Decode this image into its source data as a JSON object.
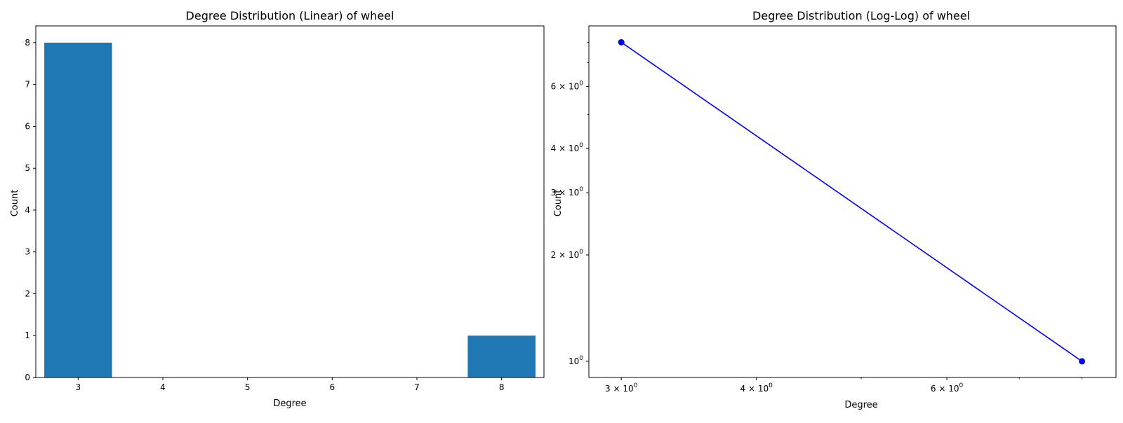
{
  "chart_data": [
    {
      "type": "bar",
      "title": "Degree Distribution (Linear) of wheel",
      "xlabel": "Degree",
      "ylabel": "Count",
      "categories": [
        3,
        8
      ],
      "values": [
        8,
        1
      ],
      "xticks": [
        "3",
        "4",
        "5",
        "6",
        "7",
        "8"
      ],
      "yticks": [
        "0",
        "1",
        "2",
        "3",
        "4",
        "5",
        "6",
        "7",
        "8"
      ],
      "xlim": [
        2.5,
        8.5
      ],
      "ylim": [
        0,
        8.4
      ],
      "bar_color": "#1f77b4",
      "grid": false
    },
    {
      "type": "line",
      "title": "Degree Distribution (Log-Log) of wheel",
      "xlabel": "Degree",
      "ylabel": "Count",
      "x": [
        3,
        8
      ],
      "y": [
        8,
        1
      ],
      "xscale": "log",
      "yscale": "log",
      "xlim": [
        2.8,
        8.6
      ],
      "ylim": [
        0.9,
        8.9
      ],
      "xticks": [
        {
          "value": 3,
          "base": "3 × 10",
          "exp": "0"
        },
        {
          "value": 4,
          "base": "4 × 10",
          "exp": "0"
        },
        {
          "value": 6,
          "base": "6 × 10",
          "exp": "0"
        }
      ],
      "yticks": [
        {
          "value": 1,
          "base": "10",
          "exp": "0"
        },
        {
          "value": 2,
          "base": "2 × 10",
          "exp": "0"
        },
        {
          "value": 3,
          "base": "3 × 10",
          "exp": "0"
        },
        {
          "value": 4,
          "base": "4 × 10",
          "exp": "0"
        },
        {
          "value": 6,
          "base": "6 × 10",
          "exp": "0"
        }
      ],
      "line_color": "#0000ff",
      "marker": "circle",
      "grid": false
    }
  ]
}
